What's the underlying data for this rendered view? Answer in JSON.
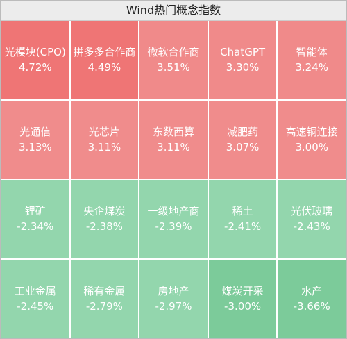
{
  "title": "Wind热门概念指数",
  "tiles": [
    {
      "name": "光模块(CPO)",
      "change": "4.72%",
      "color": "#ef7575"
    },
    {
      "name": "拼多多合作商",
      "change": "4.49%",
      "color": "#ef7575"
    },
    {
      "name": "微软合作商",
      "change": "3.51%",
      "color": "#f08a8a"
    },
    {
      "name": "ChatGPT",
      "change": "3.30%",
      "color": "#f08a8a"
    },
    {
      "name": "智能体",
      "change": "3.24%",
      "color": "#f08a8a"
    },
    {
      "name": "光通信",
      "change": "3.13%",
      "color": "#f08c8c"
    },
    {
      "name": "光芯片",
      "change": "3.11%",
      "color": "#f08c8c"
    },
    {
      "name": "东数西算",
      "change": "3.11%",
      "color": "#f08c8c"
    },
    {
      "name": "减肥药",
      "change": "3.07%",
      "color": "#f08c8c"
    },
    {
      "name": "高速铜连接",
      "change": "3.00%",
      "color": "#f08c8c"
    },
    {
      "name": "锂矿",
      "change": "-2.34%",
      "color": "#93d6ad"
    },
    {
      "name": "央企煤炭",
      "change": "-2.38%",
      "color": "#93d6ad"
    },
    {
      "name": "一级地产商",
      "change": "-2.39%",
      "color": "#93d6ad"
    },
    {
      "name": "稀土",
      "change": "-2.41%",
      "color": "#93d6ad"
    },
    {
      "name": "光伏玻璃",
      "change": "-2.43%",
      "color": "#93d6ad"
    },
    {
      "name": "工业金属",
      "change": "-2.45%",
      "color": "#93d6ad"
    },
    {
      "name": "稀有金属",
      "change": "-2.79%",
      "color": "#93d6ad"
    },
    {
      "name": "房地产",
      "change": "-2.97%",
      "color": "#93d6ad"
    },
    {
      "name": "煤炭开采",
      "change": "-3.00%",
      "color": "#7ccb9a"
    },
    {
      "name": "水产",
      "change": "-3.66%",
      "color": "#7ccb9a"
    }
  ]
}
